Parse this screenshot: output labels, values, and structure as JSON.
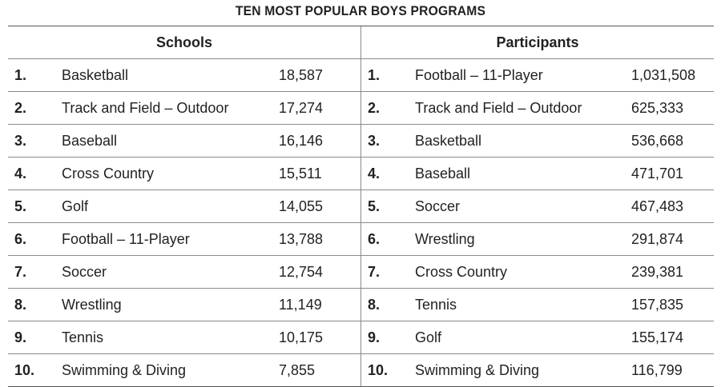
{
  "title": "TEN MOST POPULAR BOYS PROGRAMS",
  "headers": {
    "schools": "Schools",
    "participants": "Participants"
  },
  "rows": [
    {
      "rank": "1.",
      "school_sport": "Basketball",
      "schools": "18,587",
      "part_sport": "Football – 11-Player",
      "participants": "1,031,508"
    },
    {
      "rank": "2.",
      "school_sport": "Track and Field – Outdoor",
      "schools": "17,274",
      "part_sport": "Track and Field – Outdoor",
      "participants": "625,333"
    },
    {
      "rank": "3.",
      "school_sport": "Baseball",
      "schools": "16,146",
      "part_sport": "Basketball",
      "participants": "536,668"
    },
    {
      "rank": "4.",
      "school_sport": "Cross Country",
      "schools": "15,511",
      "part_sport": "Baseball",
      "participants": "471,701"
    },
    {
      "rank": "5.",
      "school_sport": "Golf",
      "schools": "14,055",
      "part_sport": "Soccer",
      "participants": "467,483"
    },
    {
      "rank": "6.",
      "school_sport": "Football – 11-Player",
      "schools": "13,788",
      "part_sport": "Wrestling",
      "participants": "291,874"
    },
    {
      "rank": "7.",
      "school_sport": "Soccer",
      "schools": "12,754",
      "part_sport": "Cross Country",
      "participants": "239,381"
    },
    {
      "rank": "8.",
      "school_sport": "Wrestling",
      "schools": "11,149",
      "part_sport": "Tennis",
      "participants": "157,835"
    },
    {
      "rank": "9.",
      "school_sport": "Tennis",
      "schools": "10,175",
      "part_sport": "Golf",
      "participants": "155,174"
    },
    {
      "rank": "10.",
      "school_sport": "Swimming & Diving",
      "schools": "7,855",
      "part_sport": "Swimming & Diving",
      "participants": "116,799"
    }
  ]
}
